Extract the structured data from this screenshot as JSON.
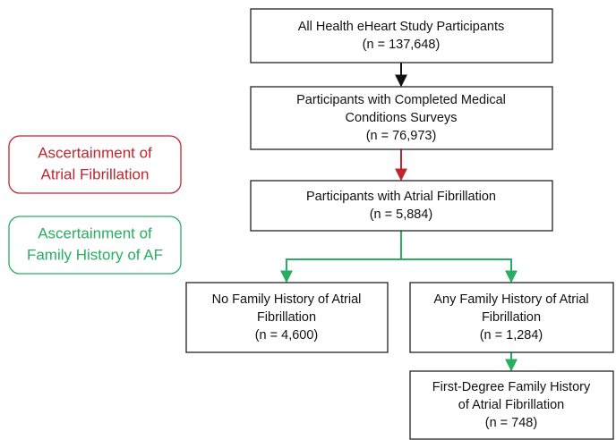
{
  "nodes": [
    {
      "lines": [
        "All Health eHeart Study Participants",
        "(n = 137,648)"
      ]
    },
    {
      "lines": [
        "Participants with Completed Medical",
        "Conditions Surveys",
        "(n = 76,973)"
      ]
    },
    {
      "lines": [
        "Participants with Atrial Fibrillation",
        "(n = 5,884)"
      ]
    },
    {
      "lines": [
        "No Family History of Atrial",
        "Fibrillation",
        "(n = 4,600)"
      ]
    },
    {
      "lines": [
        "Any Family History of Atrial",
        "Fibrillation",
        "(n = 1,284)"
      ]
    },
    {
      "lines": [
        "First-Degree Family History",
        "of Atrial Fibrillation",
        "(n = 748)"
      ]
    }
  ],
  "side_labels": [
    {
      "lines": [
        "Ascertainment of",
        "Atrial Fibrillation"
      ]
    },
    {
      "lines": [
        "Ascertainment of",
        "Family History of AF"
      ]
    }
  ]
}
